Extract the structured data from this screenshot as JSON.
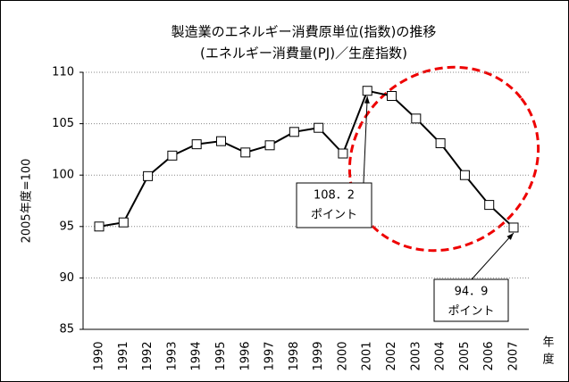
{
  "chart_data": {
    "type": "line",
    "title": [
      "製造業のエネルギー消費原単位(指数)の推移",
      "(エネルギー消費量(PJ)／生産指数)"
    ],
    "y_label": "2005年度=100",
    "x_label": "年度",
    "categories": [
      "1990",
      "1991",
      "1992",
      "1993",
      "1994",
      "1995",
      "1996",
      "1997",
      "1998",
      "1999",
      "2000",
      "2001",
      "2002",
      "2003",
      "2004",
      "2005",
      "2006",
      "2007"
    ],
    "series": [
      {
        "name": "製造業",
        "color": "#000000",
        "values": [
          95.0,
          95.4,
          99.9,
          101.9,
          103.0,
          103.3,
          102.2,
          102.9,
          104.2,
          104.6,
          102.1,
          108.2,
          107.7,
          105.5,
          103.1,
          100.0,
          97.1,
          94.9
        ]
      }
    ],
    "ylim": [
      85,
      110
    ],
    "yticks": [
      85,
      90,
      95,
      100,
      105,
      110
    ],
    "grid": true,
    "annotations": [
      {
        "lines": [
          "108．2",
          "ポイント"
        ],
        "point": 11
      },
      {
        "lines": [
          "94．9",
          "ポイント"
        ],
        "point": 17
      }
    ]
  }
}
